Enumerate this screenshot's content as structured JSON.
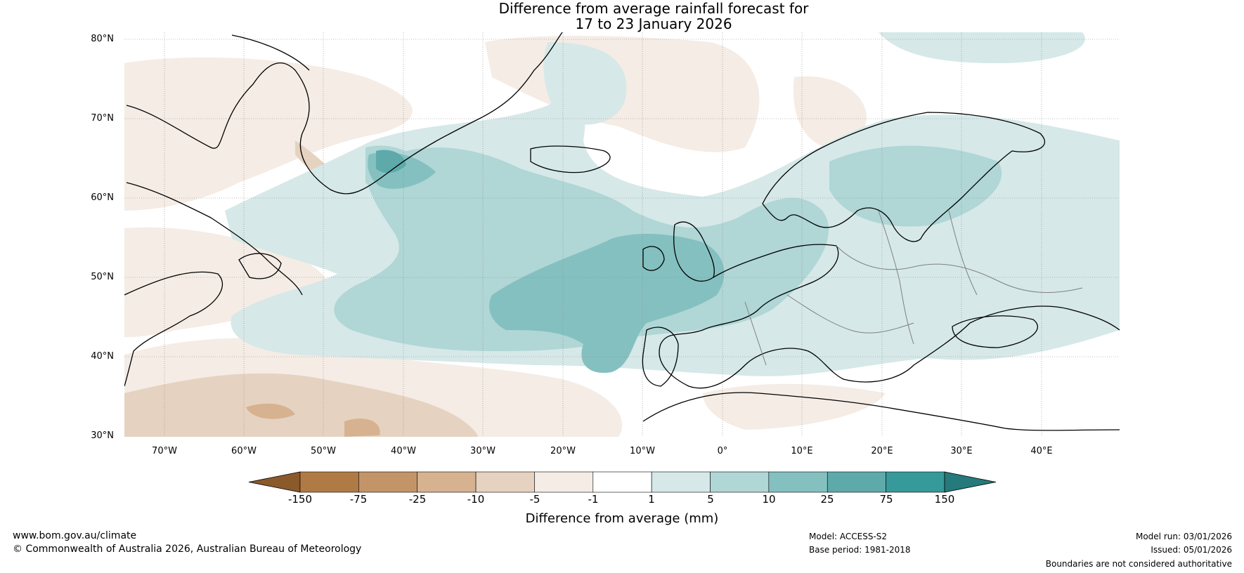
{
  "title": {
    "line1": "Difference from average rainfall forecast for",
    "line2": "17 to 23 January 2026"
  },
  "axes": {
    "lat_labels": [
      "80°N",
      "70°N",
      "60°N",
      "50°N",
      "40°N",
      "30°N"
    ],
    "lon_labels": [
      "70°W",
      "60°W",
      "50°W",
      "40°W",
      "30°W",
      "20°W",
      "10°W",
      "0°",
      "10°E",
      "20°E",
      "30°E",
      "40°E"
    ],
    "lat_range": [
      30,
      81
    ],
    "lon_range": [
      -75,
      50
    ]
  },
  "colorbar": {
    "label": "Difference from average (mm)",
    "ticks": [
      "-150",
      "-75",
      "-25",
      "-10",
      "-5",
      "-1",
      "1",
      "5",
      "10",
      "25",
      "75",
      "150"
    ],
    "colors": [
      "#8b5a2b",
      "#b07a45",
      "#c49469",
      "#d6b291",
      "#e6d2c0",
      "#f4ece5",
      "#ffffff",
      "#d6e8e8",
      "#b0d6d6",
      "#84c0c0",
      "#5eaaab",
      "#36999a",
      "#257a7b"
    ]
  },
  "footer": {
    "website": "www.bom.gov.au/climate",
    "copyright": "© Commonwealth of Australia 2026, Australian Bureau of Meteorology",
    "model": "Model: ACCESS-S2",
    "base_period": "Base period: 1981-2018",
    "model_run": "Model run: 03/01/2026",
    "issued": "Issued: 05/01/2026",
    "disclaimer": "Boundaries are not considered authoritative"
  }
}
